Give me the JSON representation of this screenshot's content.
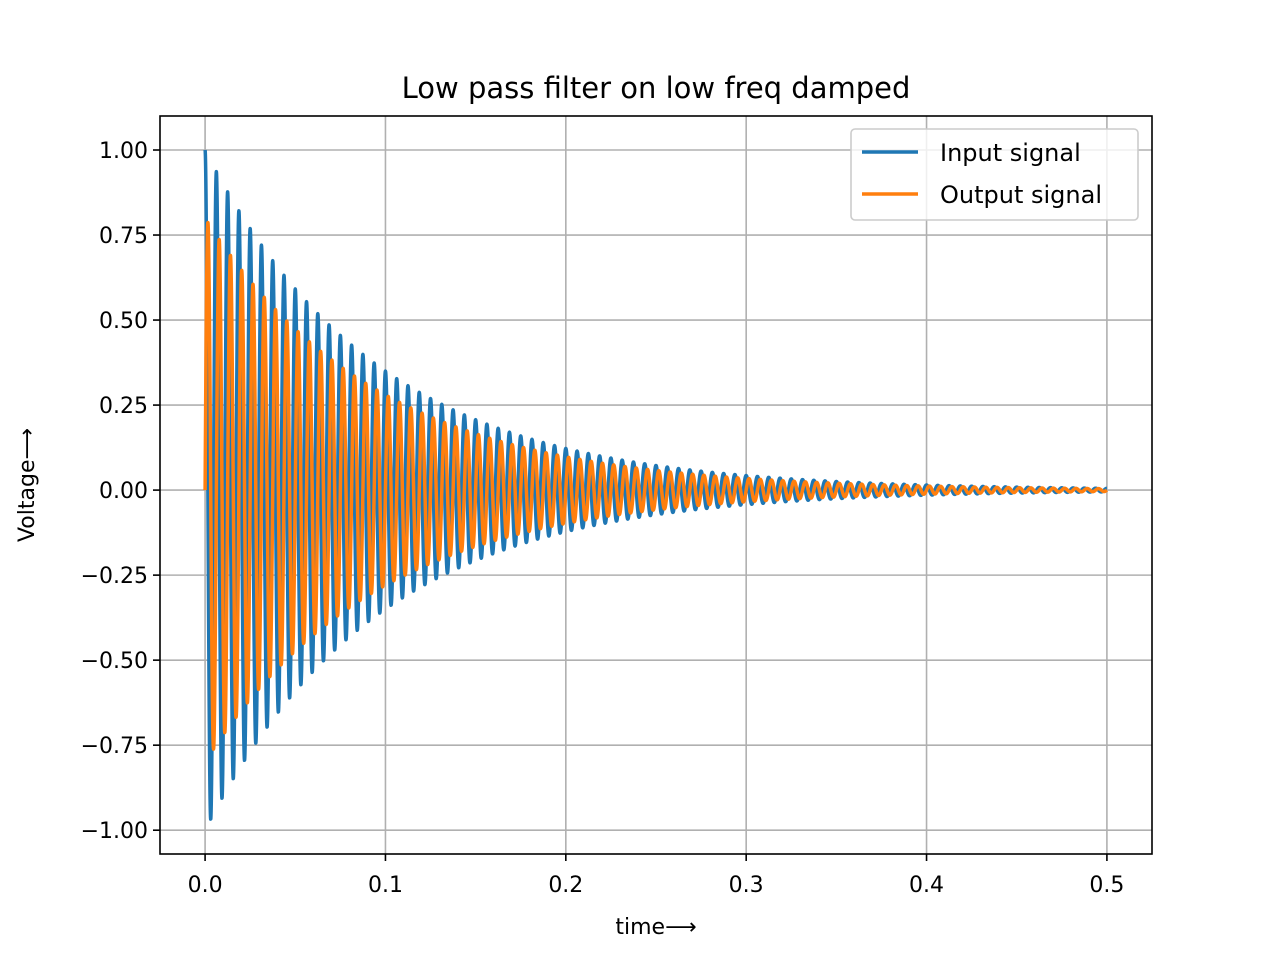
{
  "chart_data": {
    "type": "line",
    "title": "Low pass filter on low freq damped",
    "xlabel": "time⟶",
    "ylabel": "Voltage⟶",
    "xlim": [
      -0.025,
      0.525
    ],
    "ylim": [
      -1.07,
      1.1
    ],
    "xticks": [
      0.0,
      0.1,
      0.2,
      0.3,
      0.4,
      0.5
    ],
    "xtick_labels": [
      "0.0",
      "0.1",
      "0.2",
      "0.3",
      "0.4",
      "0.5"
    ],
    "yticks": [
      1.0,
      0.75,
      0.5,
      0.25,
      0.0,
      -0.25,
      -0.5,
      -0.75,
      -1.0
    ],
    "ytick_labels": [
      "1.00",
      "0.75",
      "0.50",
      "0.25",
      "0.00",
      "−0.25",
      "−0.50",
      "−0.75",
      "−1.00"
    ],
    "grid": true,
    "legend_position": "upper right",
    "series": [
      {
        "name": "Input signal",
        "color": "#1f77b4",
        "form": "damped cosine",
        "t_range": [
          0.0,
          0.5
        ],
        "amplitude": 1.0,
        "frequency": 160,
        "decay_rate": 10.5,
        "phase": 0.0
      },
      {
        "name": "Output signal",
        "color": "#ff7f0e",
        "form": "damped sine",
        "t_range": [
          0.0,
          0.5
        ],
        "amplitude": 0.8,
        "frequency": 160,
        "decay_rate": 10.5,
        "phase": 0.0
      }
    ]
  }
}
